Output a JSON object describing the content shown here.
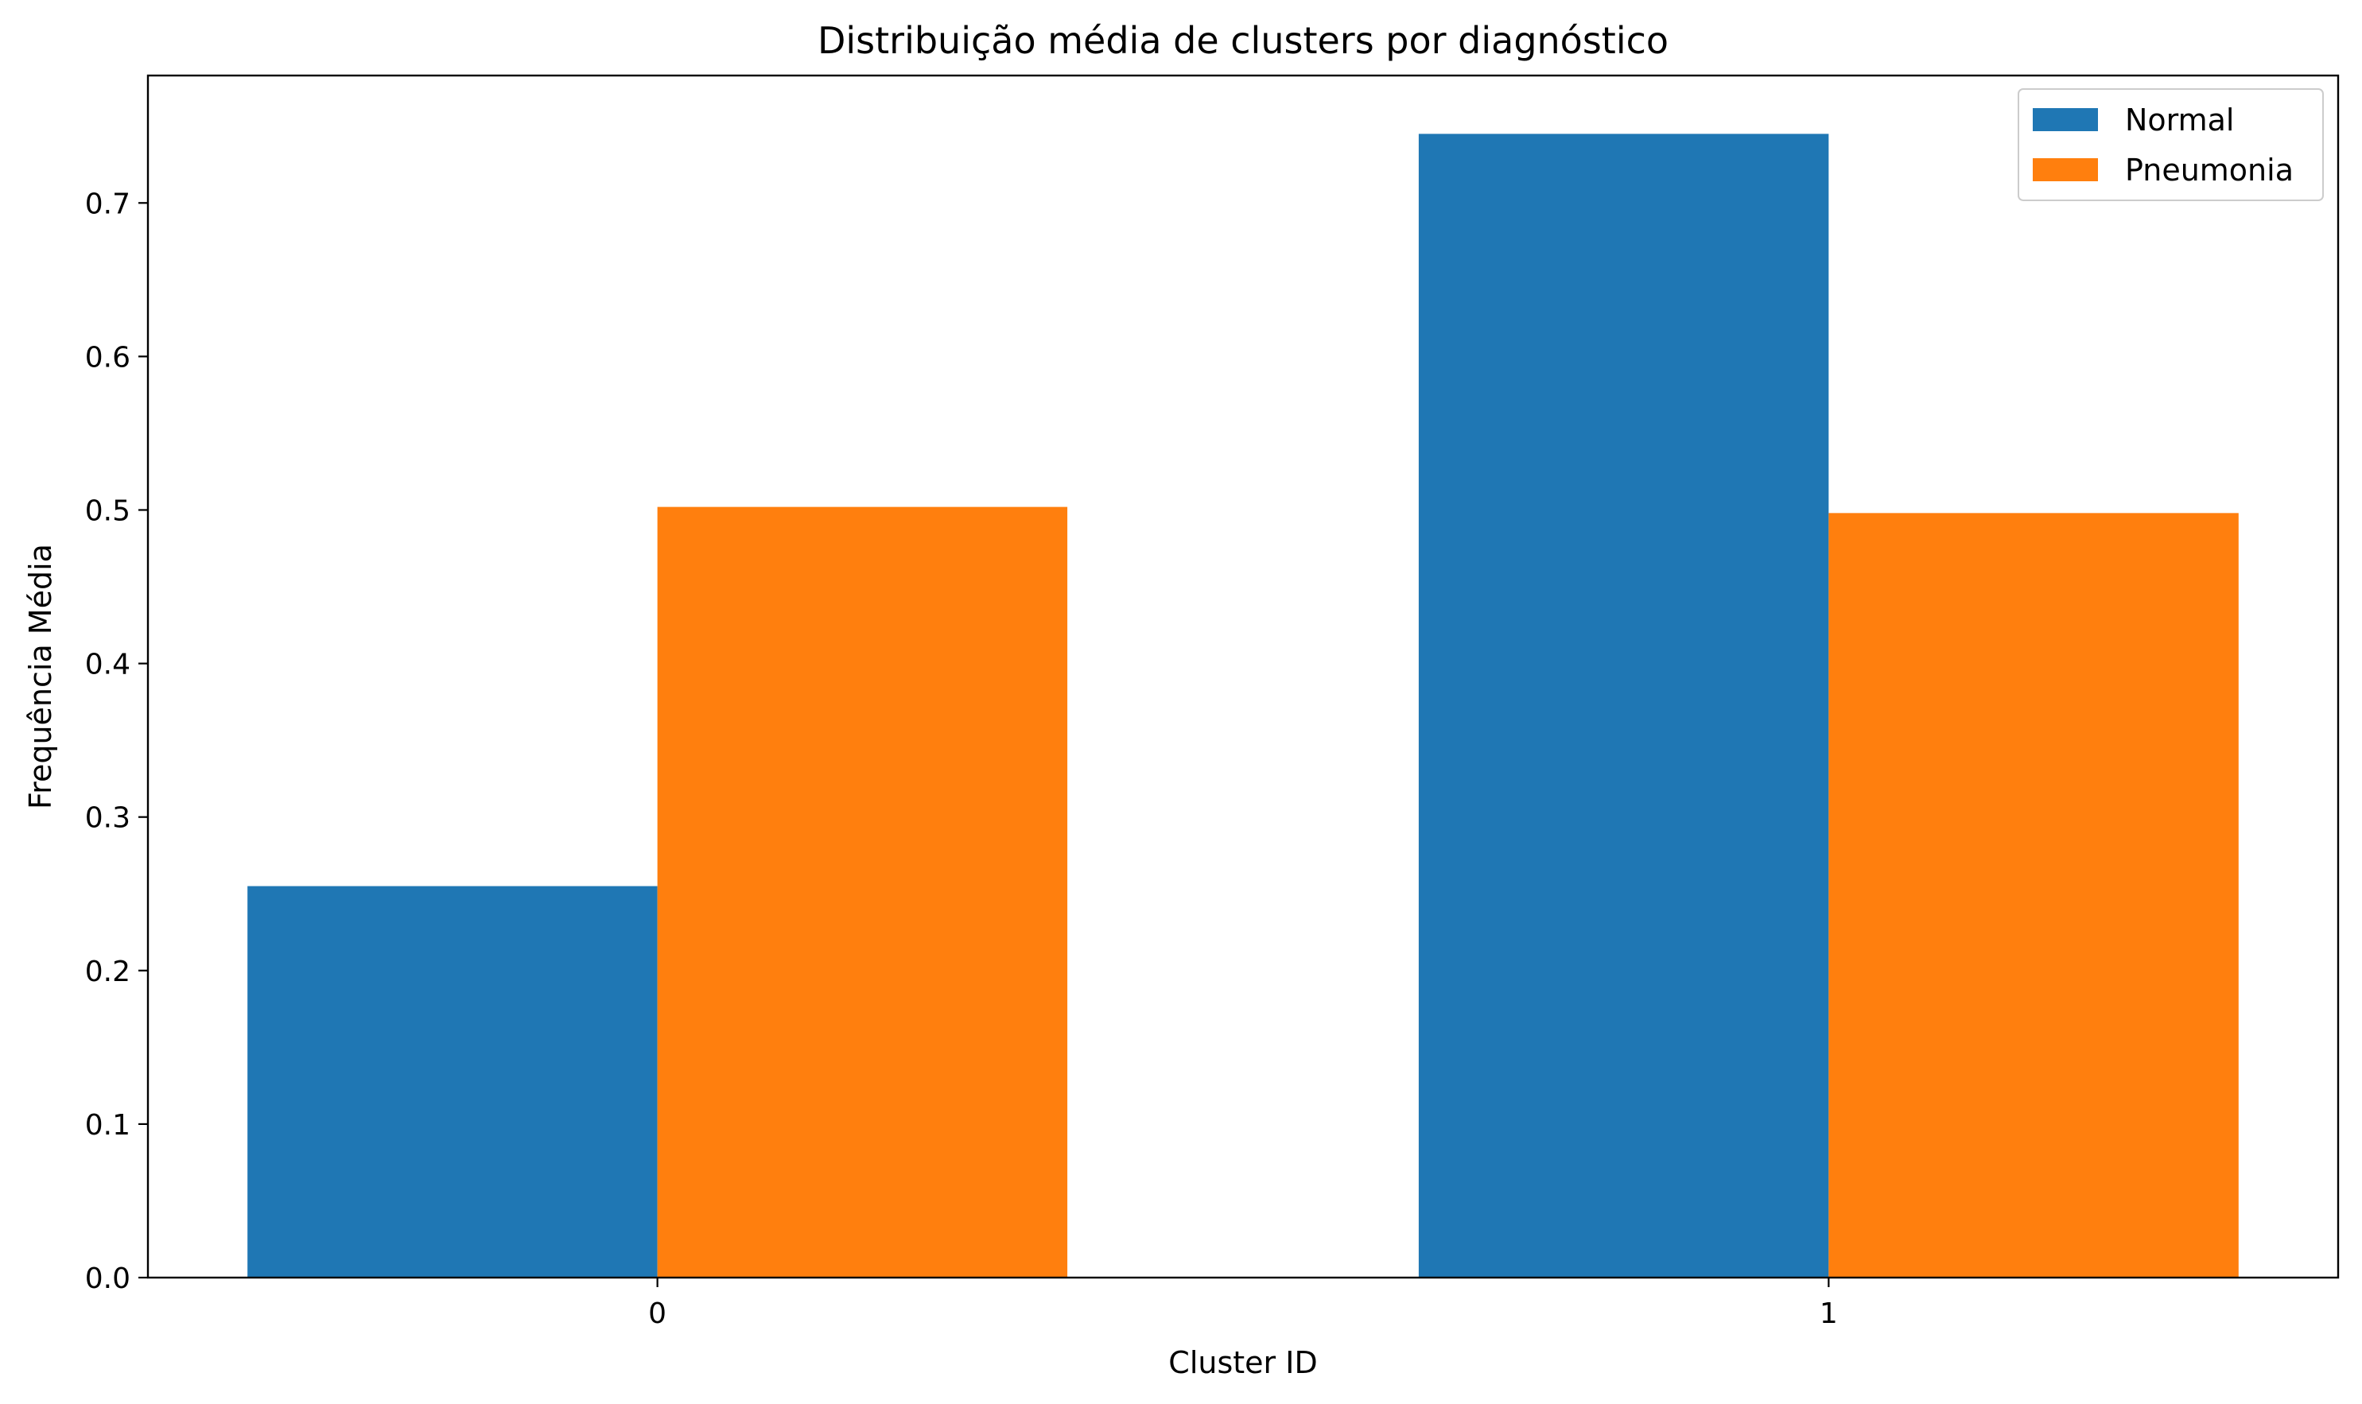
{
  "chart_data": {
    "type": "bar",
    "title": "Distribuição média de clusters por diagnóstico",
    "xlabel": "Cluster ID",
    "ylabel": "Frequência Média",
    "categories": [
      "0",
      "1"
    ],
    "series": [
      {
        "name": "Normal",
        "values": [
          0.255,
          0.745
        ],
        "color": "#1f77b4"
      },
      {
        "name": "Pneumonia",
        "values": [
          0.502,
          0.498
        ],
        "color": "#ff7f0e"
      }
    ],
    "ylim": [
      0,
      0.783
    ],
    "yticks": [
      0.0,
      0.1,
      0.2,
      0.3,
      0.4,
      0.5,
      0.6,
      0.7
    ],
    "ytick_labels": [
      "0.0",
      "0.1",
      "0.2",
      "0.3",
      "0.4",
      "0.5",
      "0.6",
      "0.7"
    ],
    "grid": false,
    "legend_position": "top-right"
  }
}
